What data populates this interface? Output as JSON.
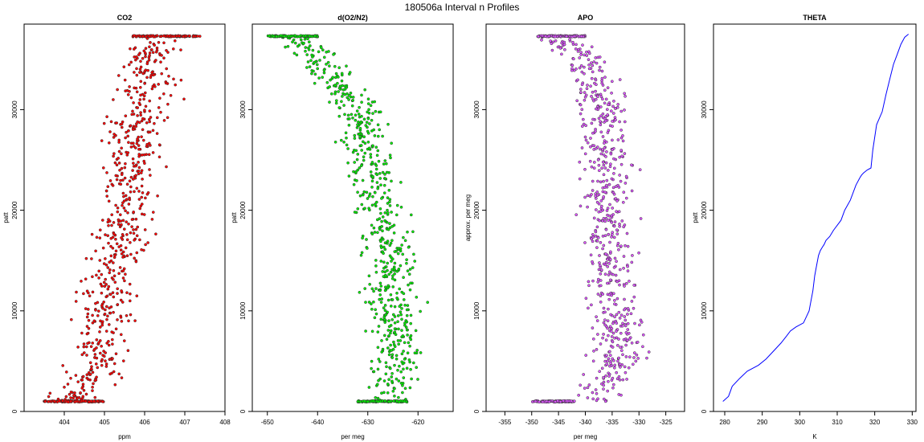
{
  "figure": {
    "suptitle": "180506a   Interval n Profiles"
  },
  "colors": {
    "co2": "#ff0000",
    "o2n2": "#00ee00",
    "apo": "#dd55ff",
    "theta": "#0000ff",
    "edge": "#333333"
  },
  "chart_data": [
    {
      "type": "scatter",
      "title": "CO2",
      "xlabel": "ppm",
      "ylabel": "patt",
      "xlim": [
        403.0,
        408.0
      ],
      "ylim": [
        0,
        38500
      ],
      "xticks": [
        404,
        405,
        406,
        407,
        408
      ],
      "xticklabels": [
        "404",
        "405",
        "406",
        "407",
        "408"
      ],
      "yticks": [
        0,
        10000,
        20000,
        30000
      ],
      "yticklabels": [
        "0",
        "10000",
        "20000",
        "30000"
      ],
      "profile": {
        "alt": [
          1000,
          5000,
          10000,
          15000,
          20000,
          25000,
          30000,
          35000,
          37300
        ],
        "x": [
          404.3,
          404.9,
          405.0,
          405.3,
          405.6,
          405.7,
          405.9,
          406.1,
          406.4
        ]
      },
      "spread": 0.5,
      "surface_cluster": {
        "alt": 1000,
        "x_range": [
          403.5,
          405.0
        ]
      },
      "top_cluster": {
        "alt": 37300,
        "x_range": [
          405.7,
          407.4
        ]
      }
    },
    {
      "type": "scatter",
      "title": "d(O2/N2)",
      "xlabel": "per meg",
      "ylabel": "patt",
      "xlim": [
        -653,
        -613
      ],
      "ylim": [
        0,
        38500
      ],
      "xticks": [
        -650,
        -640,
        -630,
        -620
      ],
      "xticklabels": [
        "-650",
        "-640",
        "-630",
        "-620"
      ],
      "yticks": [
        0,
        10000,
        20000,
        30000
      ],
      "yticklabels": [
        "0",
        "10000",
        "20000",
        "30000"
      ],
      "profile": {
        "alt": [
          1000,
          5000,
          10000,
          15000,
          20000,
          25000,
          30000,
          34000,
          37300
        ],
        "x": [
          -627,
          -624,
          -625,
          -625,
          -628,
          -630,
          -632,
          -638,
          -645
        ]
      },
      "spread": 3.5,
      "surface_cluster": {
        "alt": 1000,
        "x_range": [
          -632,
          -622
        ]
      },
      "top_cluster": {
        "alt": 37300,
        "x_range": [
          -650,
          -640
        ]
      }
    },
    {
      "type": "scatter",
      "title": "APO",
      "xlabel": "per meg",
      "ylabel": "approx. per meg",
      "xlim": [
        -358.5,
        -321.5
      ],
      "ylim": [
        0,
        38500
      ],
      "xticks": [
        -355,
        -350,
        -345,
        -340,
        -335,
        -330,
        -325
      ],
      "xticklabels": [
        "-355",
        "-350",
        "-345",
        "-340",
        "-335",
        "-330",
        "-325"
      ],
      "yticks": [
        0,
        10000,
        20000,
        30000
      ],
      "yticklabels": [
        "0",
        "10000",
        "20000",
        "30000"
      ],
      "profile": {
        "alt": [
          1000,
          5000,
          10000,
          15000,
          20000,
          25000,
          30000,
          35000,
          37300
        ],
        "x": [
          -338,
          -334,
          -335,
          -335,
          -336,
          -336,
          -337,
          -339,
          -346
        ]
      },
      "spread": 3.2,
      "surface_cluster": {
        "alt": 1000,
        "x_range": [
          -350,
          -342
        ]
      },
      "top_cluster": {
        "alt": 37300,
        "x_range": [
          -349,
          -340
        ]
      }
    },
    {
      "type": "line",
      "title": "THETA",
      "xlabel": "K",
      "ylabel": "patt",
      "xlim": [
        277,
        331
      ],
      "ylim": [
        0,
        38500
      ],
      "xticks": [
        280,
        290,
        300,
        310,
        320,
        330
      ],
      "xticklabels": [
        "280",
        "290",
        "300",
        "310",
        "320",
        "330"
      ],
      "yticks": [
        0,
        10000,
        20000,
        30000
      ],
      "yticklabels": [
        "0",
        "10000",
        "20000",
        "30000"
      ],
      "series": [
        {
          "name": "THETA",
          "x": [
            279.5,
            281,
            282,
            284,
            286,
            289,
            291,
            293,
            295,
            296.5,
            297.5,
            299,
            301,
            302.5,
            303.5,
            304,
            304.5,
            305,
            305.5,
            306,
            306.5,
            307,
            308,
            309,
            311,
            312,
            313.5,
            315,
            316,
            316.5,
            317,
            318,
            319,
            319.5,
            320.5,
            322,
            323,
            324,
            325,
            326,
            327,
            328,
            329
          ],
          "y": [
            1000,
            1500,
            2500,
            3300,
            4000,
            4600,
            5200,
            6000,
            6800,
            7500,
            8000,
            8400,
            8800,
            10000,
            12000,
            13500,
            14500,
            15500,
            16000,
            16300,
            16600,
            17000,
            17400,
            18000,
            19000,
            20000,
            21000,
            22500,
            23200,
            23500,
            23700,
            24000,
            24200,
            26000,
            28500,
            29800,
            31500,
            33000,
            34500,
            35500,
            36500,
            37200,
            37500
          ]
        }
      ]
    }
  ]
}
